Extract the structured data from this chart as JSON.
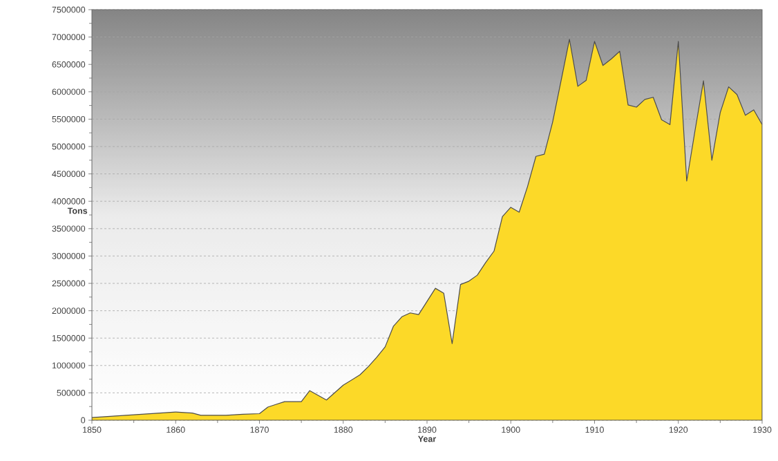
{
  "chart_data": {
    "type": "area",
    "xlabel": "Year",
    "ylabel": "Tons",
    "x": [
      1850,
      1855,
      1860,
      1862,
      1863,
      1866,
      1868,
      1870,
      1871,
      1872,
      1873,
      1875,
      1876,
      1878,
      1880,
      1882,
      1883,
      1884,
      1885,
      1886,
      1887,
      1888,
      1889,
      1891,
      1892,
      1893,
      1894,
      1895,
      1896,
      1897,
      1898,
      1899,
      1900,
      1901,
      1902,
      1903,
      1904,
      1905,
      1906,
      1907,
      1908,
      1909,
      1910,
      1911,
      1912,
      1913,
      1914,
      1915,
      1916,
      1917,
      1918,
      1919,
      1920,
      1921,
      1922,
      1923,
      1924,
      1925,
      1926,
      1927,
      1928,
      1929,
      1930
    ],
    "series": [
      {
        "color": "#fcd928",
        "values": [
          50000,
          100000,
          150000,
          130000,
          90000,
          90000,
          110000,
          120000,
          240000,
          290000,
          340000,
          340000,
          540000,
          370000,
          640000,
          830000,
          980000,
          1150000,
          1340000,
          1720000,
          1890000,
          1960000,
          1930000,
          2410000,
          2320000,
          1400000,
          2480000,
          2540000,
          2650000,
          2880000,
          3090000,
          3720000,
          3890000,
          3800000,
          4270000,
          4820000,
          4860000,
          5450000,
          6200000,
          6960000,
          6100000,
          6210000,
          6920000,
          6480000,
          6600000,
          6740000,
          5760000,
          5720000,
          5860000,
          5900000,
          5490000,
          5400000,
          6920000,
          4370000,
          5300000,
          6200000,
          4750000,
          5620000,
          6090000,
          5950000,
          5570000,
          5670000,
          5400000
        ]
      }
    ],
    "xlim": [
      1850,
      1930
    ],
    "xticks": [
      1850,
      1860,
      1870,
      1880,
      1890,
      1900,
      1910,
      1920,
      1930
    ],
    "ylim": [
      0,
      7500000
    ],
    "yticks": [
      0,
      500000,
      1000000,
      1500000,
      2000000,
      2500000,
      3000000,
      3500000,
      4000000,
      4500000,
      5000000,
      5500000,
      6000000,
      6500000,
      7000000,
      7500000
    ],
    "grid": "y"
  }
}
